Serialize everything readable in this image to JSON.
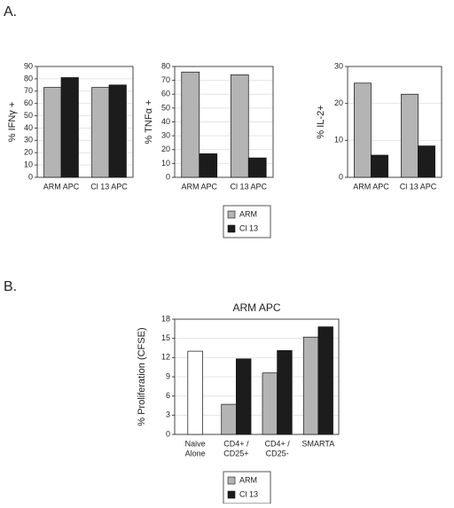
{
  "panel_labels": [
    "A.",
    "B."
  ],
  "chart_data": [
    {
      "type": "bar",
      "ylabel": "% IFNγ +",
      "categories": [
        [
          "ARM APC"
        ],
        [
          "Cl 13 APC"
        ]
      ],
      "series": [
        {
          "name": "ARM",
          "color": "#b4b4b4",
          "values": [
            73,
            73
          ]
        },
        {
          "name": "Cl 13",
          "color": "#1c1c1c",
          "values": [
            81,
            75
          ]
        }
      ],
      "ylim": [
        0,
        90
      ],
      "yticks": [
        0,
        10,
        20,
        30,
        40,
        50,
        60,
        70,
        80,
        90
      ],
      "grid": true
    },
    {
      "type": "bar",
      "ylabel": "% TNFα +",
      "categories": [
        [
          "ARM APC"
        ],
        [
          "Cl 13 APC"
        ]
      ],
      "series": [
        {
          "color": "#b4b4b4",
          "values": [
            76,
            74
          ]
        },
        {
          "color": "#1c1c1c",
          "values": [
            17,
            14
          ]
        }
      ],
      "ylim": [
        0,
        80
      ],
      "yticks": [
        0,
        10,
        20,
        30,
        40,
        50,
        60,
        70,
        80
      ],
      "grid": true
    },
    {
      "type": "bar",
      "ylabel": "% IL-2+",
      "categories": [
        [
          "ARM APC"
        ],
        [
          "Cl 13 APC"
        ]
      ],
      "series": [
        {
          "color": "#b4b4b4",
          "values": [
            25.5,
            22.5
          ]
        },
        {
          "color": "#1c1c1c",
          "values": [
            6,
            8.5
          ]
        }
      ],
      "ylim": [
        0,
        30
      ],
      "yticks": [
        0,
        10,
        20,
        30
      ],
      "grid": true
    },
    {
      "type": "bar",
      "title": "ARM APC",
      "ylabel": "% Proliferation (CFSE)",
      "categories": [
        [
          "Naive",
          "Alone"
        ],
        [
          "CD4+ /",
          "CD25+"
        ],
        [
          "CD4+ /",
          "CD25-"
        ],
        [
          "SMARTA"
        ]
      ],
      "series": [
        {
          "color": "#ffffff",
          "values": [
            13,
            null,
            null,
            null
          ]
        },
        {
          "name": "ARM",
          "color": "#b4b4b4",
          "values": [
            null,
            4.7,
            9.6,
            15.2
          ]
        },
        {
          "name": "Cl 13",
          "color": "#1c1c1c",
          "values": [
            null,
            11.8,
            13.1,
            16.8
          ]
        }
      ],
      "ylim": [
        0,
        18
      ],
      "yticks": [
        0,
        3,
        6,
        9,
        12,
        15,
        18
      ],
      "grid": true
    }
  ]
}
